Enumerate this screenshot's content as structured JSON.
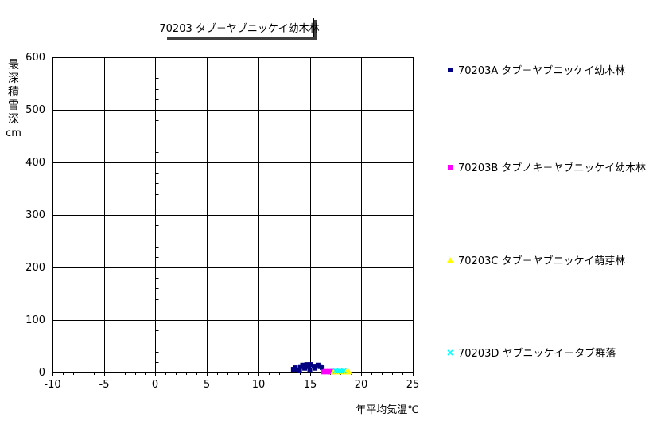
{
  "chart_data": {
    "type": "scatter",
    "title": "70203 タブ－ヤブニッケイ幼木林",
    "xlabel": "年平均気温℃",
    "ylabel": "最深積雪深",
    "ylabel_unit": "cm",
    "xlim": [
      -10,
      25
    ],
    "ylim": [
      0,
      600
    ],
    "x_ticks": [
      -10,
      -5,
      0,
      5,
      10,
      15,
      20,
      25
    ],
    "y_ticks": [
      0,
      100,
      200,
      300,
      400,
      500,
      600
    ],
    "x_minor_unit": 1,
    "y_minor_unit": 20,
    "grid": true,
    "gridline_color": "#000000",
    "plot_background": "#ffffff",
    "legend_position": "right",
    "series": [
      {
        "name": "70203A タブ－ヤブニッケイ幼木林",
        "marker": "square",
        "color": "#000080",
        "points": [
          [
            13.4,
            6
          ],
          [
            13.6,
            9
          ],
          [
            13.8,
            5
          ],
          [
            14.1,
            11
          ],
          [
            14.3,
            14
          ],
          [
            14.5,
            8
          ],
          [
            14.7,
            15
          ],
          [
            14.9,
            11
          ],
          [
            15.1,
            15
          ],
          [
            15.4,
            12
          ],
          [
            15.5,
            8
          ],
          [
            15.8,
            14
          ],
          [
            16.0,
            11
          ],
          [
            16.2,
            9
          ],
          [
            15.0,
            4
          ],
          [
            14.0,
            3
          ]
        ]
      },
      {
        "name": "70203B タブノキ－ヤブニッケイ幼木林",
        "marker": "square",
        "color": "#FF00FF",
        "points": [
          [
            16.3,
            1
          ],
          [
            16.5,
            2
          ],
          [
            16.7,
            1
          ],
          [
            16.9,
            2
          ],
          [
            17.0,
            1
          ],
          [
            17.2,
            2
          ],
          [
            17.4,
            1
          ]
        ]
      },
      {
        "name": "70203C タブ－ヤブニッケイ萌芽林",
        "marker": "triangle",
        "color": "#FFFF00",
        "points": [
          [
            17.3,
            1
          ],
          [
            17.5,
            2
          ],
          [
            17.7,
            1
          ],
          [
            17.9,
            2
          ],
          [
            18.1,
            1
          ],
          [
            18.3,
            2
          ],
          [
            18.6,
            1
          ],
          [
            18.8,
            1
          ]
        ]
      },
      {
        "name": "70203D ヤブニッケイ－タブ群落",
        "marker": "x",
        "color": "#00FFFF",
        "points": [
          [
            17.5,
            3
          ],
          [
            17.7,
            2
          ],
          [
            17.9,
            3
          ],
          [
            18.1,
            2
          ],
          [
            18.3,
            3
          ]
        ]
      }
    ]
  }
}
